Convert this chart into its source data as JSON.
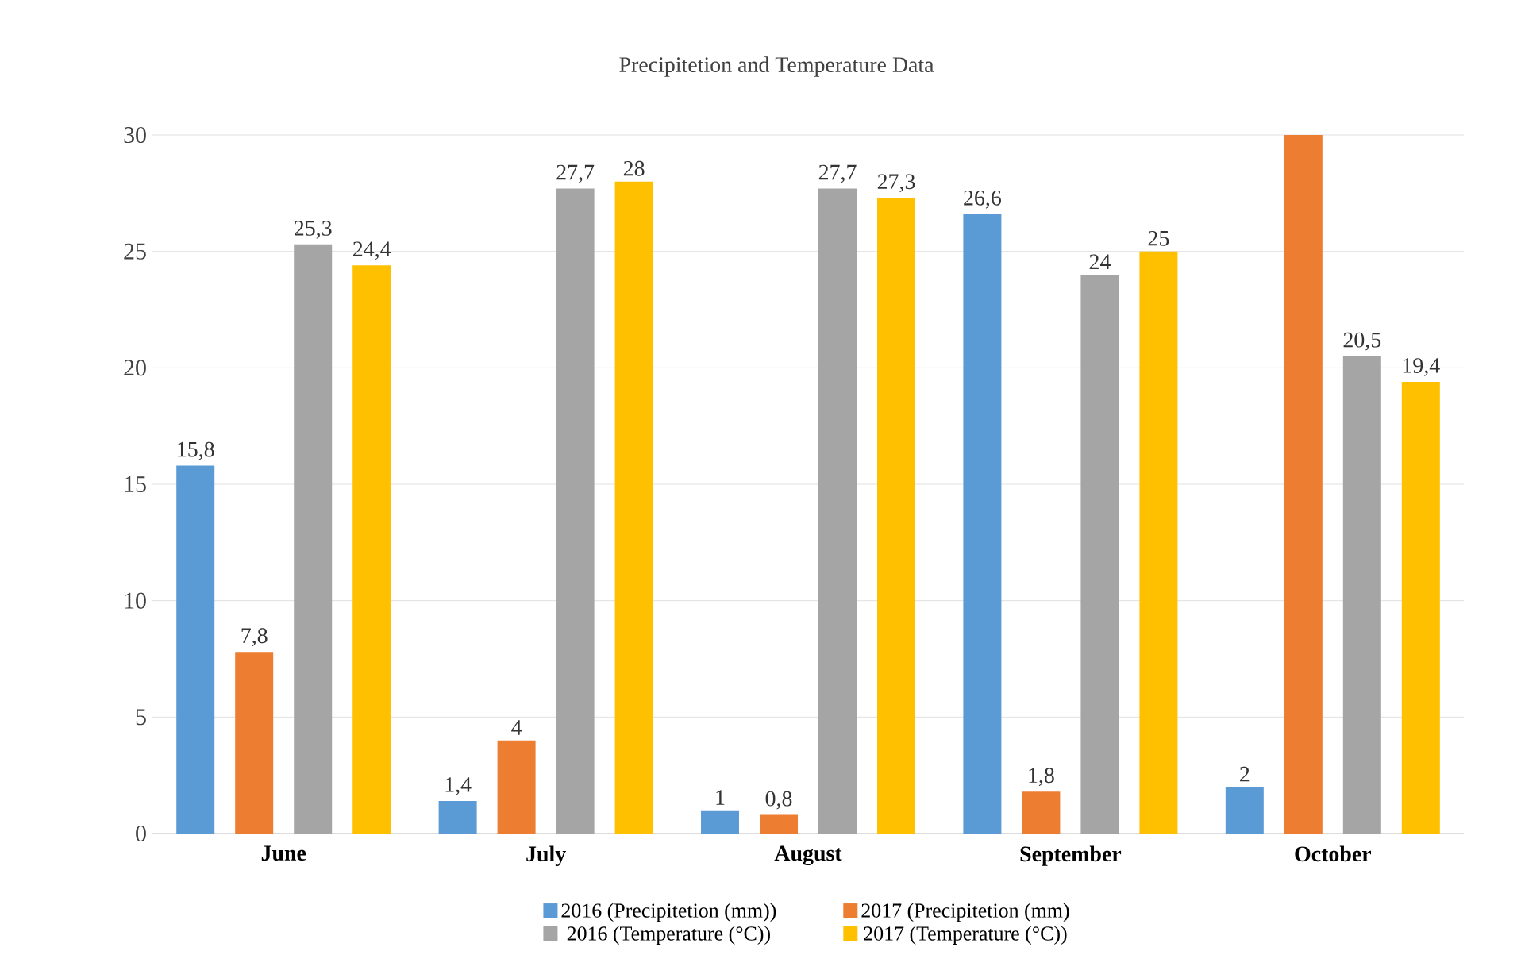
{
  "chart_data": {
    "type": "bar",
    "title": "Precipitetion and Temperature Data",
    "categories": [
      "June",
      "July",
      "August",
      "September",
      "October"
    ],
    "series": [
      {
        "name": "2016     (Precipitetion (mm))",
        "color": "#5b9bd5",
        "values": [
          15.8,
          1.4,
          1,
          26.6,
          2
        ],
        "value_labels": [
          "15,8",
          "1,4",
          "1",
          "26,6",
          "2"
        ]
      },
      {
        "name": "2017 (Precipitetion (mm)",
        "color": "#ed7d31",
        "values": [
          7.8,
          4,
          0.8,
          1.8,
          30
        ],
        "value_labels": [
          "7,8",
          "4",
          "0,8",
          "1,8",
          null
        ]
      },
      {
        "name": "2016  (Temperature (°C))",
        "color": "#a5a5a5",
        "values": [
          25.3,
          27.7,
          27.7,
          24,
          20.5
        ],
        "value_labels": [
          "25,3",
          "27,7",
          "27,7",
          "24",
          "20,5"
        ]
      },
      {
        "name": "2017 (Temperature (°C))",
        "color": "#ffc000",
        "values": [
          24.4,
          28,
          27.3,
          25,
          19.4
        ],
        "value_labels": [
          "24,4",
          "28",
          "27,3",
          "25",
          "19,4"
        ]
      }
    ],
    "ylim": [
      0,
      30
    ],
    "yticks": [
      0,
      5,
      10,
      15,
      20,
      25,
      30
    ],
    "grid": "y",
    "legend": "bottom"
  }
}
